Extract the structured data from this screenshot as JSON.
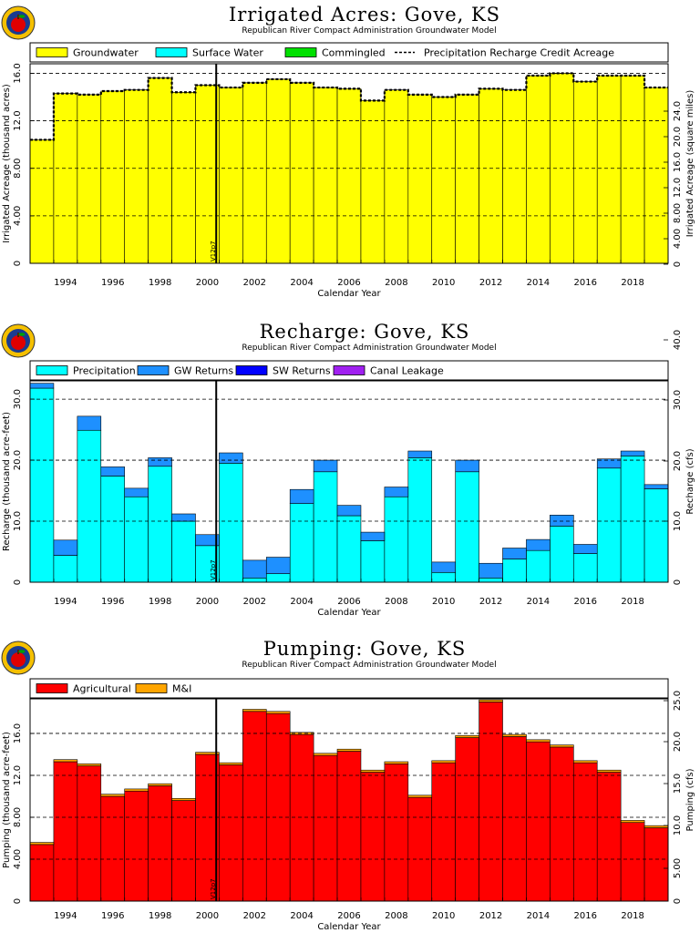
{
  "chart_data": [
    {
      "id": "irrigated",
      "type": "bar",
      "title": "Irrigated Acres: Gove, KS",
      "subtitle": "Republican River Compact Administration Groundwater Model",
      "xlabel": "Calendar Year",
      "ylabel": "Irrigated Acreage (thousand acres)",
      "ylabel_right": "Irrigated Acreage (square miles)",
      "legend_position": "top",
      "legend": [
        {
          "label": "Groundwater",
          "color": "#ffff00",
          "kind": "box"
        },
        {
          "label": "Surface Water",
          "color": "#00ffff",
          "kind": "box"
        },
        {
          "label": "Commingled",
          "color": "#00e000",
          "kind": "box"
        },
        {
          "label": "Precipitation Recharge Credit Acreage",
          "kind": "dashed"
        }
      ],
      "x_ticks": [
        "1994",
        "1996",
        "1998",
        "2000",
        "2002",
        "2004",
        "2006",
        "2008",
        "2010",
        "2012",
        "2014",
        "2016",
        "2018"
      ],
      "ylim": [
        0,
        16.8
      ],
      "y_ticks": [
        "0",
        "4.00",
        "8.00",
        "12.0",
        "16.0"
      ],
      "y_ticks_right": [
        "0",
        "4.00",
        "8.00",
        "12.0",
        "16.0",
        "20.0",
        "24.0"
      ],
      "marker_label": "V12p7",
      "categories": [
        "1993",
        "1994",
        "1995",
        "1996",
        "1997",
        "1998",
        "1999",
        "2000",
        "2001",
        "2002",
        "2003",
        "2004",
        "2005",
        "2006",
        "2007",
        "2008",
        "2009",
        "2010",
        "2011",
        "2012",
        "2013",
        "2014",
        "2015",
        "2016",
        "2017",
        "2018",
        "2019"
      ],
      "series": [
        {
          "name": "Groundwater",
          "color": "#ffff00",
          "values": [
            10.4,
            14.3,
            14.2,
            14.5,
            14.6,
            15.6,
            14.4,
            15.0,
            14.8,
            15.2,
            15.5,
            15.2,
            14.8,
            14.7,
            13.7,
            14.6,
            14.2,
            14.0,
            14.2,
            14.7,
            14.6,
            15.8,
            16.0,
            15.3,
            15.8,
            15.8,
            14.8
          ]
        },
        {
          "name": "Surface Water",
          "color": "#00ffff",
          "values": [
            0,
            0,
            0,
            0,
            0,
            0,
            0,
            0,
            0,
            0,
            0,
            0,
            0,
            0,
            0,
            0,
            0,
            0,
            0,
            0,
            0,
            0,
            0,
            0,
            0,
            0,
            0
          ]
        },
        {
          "name": "Commingled",
          "color": "#00e000",
          "values": [
            0,
            0,
            0,
            0,
            0,
            0,
            0,
            0,
            0,
            0,
            0,
            0,
            0,
            0,
            0,
            0,
            0,
            0,
            0,
            0,
            0,
            0,
            0,
            0,
            0,
            0,
            0
          ]
        }
      ],
      "dashed_line": {
        "name": "Precipitation Recharge Credit Acreage",
        "values": [
          10.4,
          14.3,
          14.2,
          14.5,
          14.6,
          15.6,
          14.4,
          15.0,
          14.8,
          15.2,
          15.5,
          15.2,
          14.8,
          14.7,
          13.7,
          14.6,
          14.2,
          14.0,
          14.2,
          14.7,
          14.6,
          15.8,
          16.0,
          15.3,
          15.8,
          15.8,
          14.8
        ]
      }
    },
    {
      "id": "recharge",
      "type": "bar",
      "title": "Recharge: Gove, KS",
      "subtitle": "Republican River Compact Administration Groundwater Model",
      "xlabel": "Calendar Year",
      "ylabel": "Recharge (thousand acre-feet)",
      "ylabel_right": "Recharge (cfs)",
      "legend_position": "top",
      "legend": [
        {
          "label": "Precipitation",
          "color": "#00ffff",
          "kind": "box"
        },
        {
          "label": "GW Returns",
          "color": "#1e90ff",
          "kind": "box"
        },
        {
          "label": "SW Returns",
          "color": "#0000ff",
          "kind": "box"
        },
        {
          "label": "Canal Leakage",
          "color": "#a020f0",
          "kind": "box"
        }
      ],
      "x_ticks": [
        "1994",
        "1996",
        "1998",
        "2000",
        "2002",
        "2004",
        "2006",
        "2008",
        "2010",
        "2012",
        "2014",
        "2016",
        "2018"
      ],
      "ylim": [
        0,
        33
      ],
      "y_ticks": [
        "0",
        "10.0",
        "20.0",
        "30.0"
      ],
      "y_ticks_right": [
        "0",
        "10.0",
        "20.0",
        "30.0",
        "40.0"
      ],
      "marker_label": "V12p7",
      "categories": [
        "1993",
        "1994",
        "1995",
        "1996",
        "1997",
        "1998",
        "1999",
        "2000",
        "2001",
        "2002",
        "2003",
        "2004",
        "2005",
        "2006",
        "2007",
        "2008",
        "2009",
        "2010",
        "2011",
        "2012",
        "2013",
        "2014",
        "2015",
        "2016",
        "2017",
        "2018",
        "2019"
      ],
      "series": [
        {
          "name": "Precipitation",
          "color": "#00ffff",
          "values": [
            31.8,
            4.4,
            24.9,
            17.4,
            14.0,
            19.0,
            10.0,
            6.0,
            19.5,
            0.7,
            1.4,
            12.9,
            18.1,
            10.9,
            6.8,
            14.0,
            20.4,
            1.6,
            18.1,
            0.7,
            3.8,
            5.2,
            9.2,
            4.7,
            18.7,
            20.7,
            15.3
          ]
        },
        {
          "name": "GW Returns",
          "color": "#1e90ff",
          "values": [
            0.8,
            2.5,
            2.3,
            1.5,
            1.4,
            1.4,
            1.2,
            1.8,
            1.7,
            2.9,
            2.7,
            2.3,
            1.9,
            1.7,
            1.4,
            1.6,
            1.1,
            1.7,
            1.9,
            2.4,
            1.8,
            1.8,
            1.8,
            1.5,
            1.5,
            0.8,
            0.7
          ]
        },
        {
          "name": "SW Returns",
          "color": "#0000ff",
          "values": [
            0,
            0,
            0,
            0,
            0,
            0,
            0,
            0,
            0,
            0,
            0,
            0,
            0,
            0,
            0,
            0,
            0,
            0,
            0,
            0,
            0,
            0,
            0,
            0,
            0,
            0,
            0
          ]
        },
        {
          "name": "Canal Leakage",
          "color": "#a020f0",
          "values": [
            0,
            0,
            0,
            0,
            0,
            0,
            0,
            0,
            0,
            0,
            0,
            0,
            0,
            0,
            0,
            0,
            0,
            0,
            0,
            0,
            0,
            0,
            0,
            0,
            0,
            0,
            0
          ]
        }
      ]
    },
    {
      "id": "pumping",
      "type": "bar",
      "title": "Pumping: Gove, KS",
      "subtitle": "Republican River Compact Administration Groundwater Model",
      "xlabel": "Calendar Year",
      "ylabel": "Pumping (thousand acre-feet)",
      "ylabel_right": "Pumping (cfs)",
      "legend_position": "top",
      "legend": [
        {
          "label": "Agricultural",
          "color": "#ff0000",
          "kind": "box"
        },
        {
          "label": "M&I",
          "color": "#ffa500",
          "kind": "box"
        }
      ],
      "x_ticks": [
        "1994",
        "1996",
        "1998",
        "2000",
        "2002",
        "2004",
        "2006",
        "2008",
        "2010",
        "2012",
        "2014",
        "2016",
        "2018"
      ],
      "ylim": [
        0,
        19.3
      ],
      "y_ticks": [
        "0",
        "4.00",
        "8.00",
        "12.0",
        "16.0"
      ],
      "y_ticks_right": [
        "0",
        "5.00",
        "10.0",
        "15.0",
        "20.0",
        "25.0"
      ],
      "marker_label": "V12p7",
      "categories": [
        "1993",
        "1994",
        "1995",
        "1996",
        "1997",
        "1998",
        "1999",
        "2000",
        "2001",
        "2002",
        "2003",
        "2004",
        "2005",
        "2006",
        "2007",
        "2008",
        "2009",
        "2010",
        "2011",
        "2012",
        "2013",
        "2014",
        "2015",
        "2016",
        "2017",
        "2018",
        "2019"
      ],
      "series": [
        {
          "name": "Agricultural",
          "color": "#ff0000",
          "values": [
            5.4,
            13.3,
            12.9,
            10.0,
            10.5,
            11.0,
            9.6,
            14.0,
            13.0,
            18.1,
            17.9,
            15.9,
            13.9,
            14.3,
            12.3,
            13.1,
            9.9,
            13.2,
            15.6,
            19.0,
            15.7,
            15.2,
            14.7,
            13.2,
            12.3,
            7.5,
            7.0
          ]
        },
        {
          "name": "M&I",
          "color": "#ffa500",
          "values": [
            0.2,
            0.2,
            0.2,
            0.2,
            0.2,
            0.2,
            0.2,
            0.2,
            0.2,
            0.2,
            0.2,
            0.2,
            0.2,
            0.2,
            0.2,
            0.2,
            0.2,
            0.2,
            0.2,
            0.2,
            0.2,
            0.2,
            0.2,
            0.2,
            0.2,
            0.2,
            0.2
          ]
        }
      ]
    }
  ]
}
